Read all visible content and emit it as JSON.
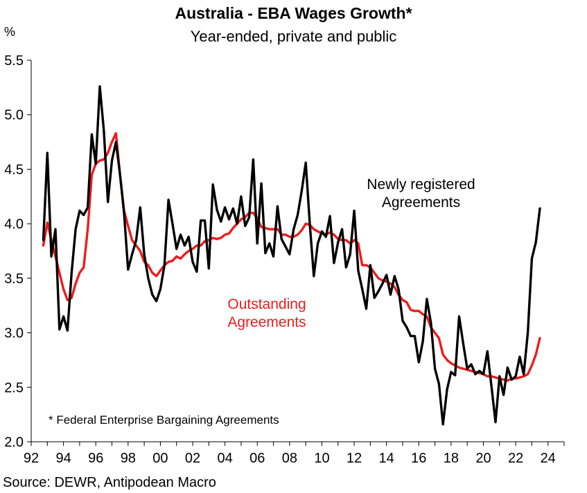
{
  "title": "Australia - EBA Wages Growth*",
  "subtitle": "Year-ended, private and public",
  "unit_label": "%",
  "source": "Source: DEWR, Antipodean Macro",
  "footnote": "*  Federal Enterprise Bargaining Agreements",
  "colors": {
    "newly": "#000000",
    "outstanding": "#ee1c1c",
    "axis": "#000000"
  },
  "chart_data": {
    "type": "line",
    "title": "Australia - EBA Wages Growth*",
    "subtitle": "Year-ended, private and public",
    "ylabel": "%",
    "xlabel": "",
    "ylim": [
      2.0,
      5.5
    ],
    "xlim": [
      1992,
      2025
    ],
    "yticks": [
      2.0,
      2.5,
      3.0,
      3.5,
      4.0,
      4.5,
      5.0,
      5.5
    ],
    "ytick_labels": [
      "2.0",
      "2.5",
      "3.0",
      "3.5",
      "4.0",
      "4.5",
      "5.0",
      "5.5"
    ],
    "xticks": [
      1992,
      1994,
      1996,
      1998,
      2000,
      2002,
      2004,
      2006,
      2008,
      2010,
      2012,
      2014,
      2016,
      2018,
      2020,
      2022,
      2024
    ],
    "xtick_labels": [
      "92",
      "94",
      "96",
      "98",
      "00",
      "02",
      "04",
      "06",
      "08",
      "10",
      "12",
      "14",
      "16",
      "18",
      "20",
      "22",
      "24"
    ],
    "grid": false,
    "series": [
      {
        "name": "Newly registered Agreements",
        "label_lines": [
          "Newly registered",
          "Agreements"
        ],
        "color": "#000000",
        "x": [
          1992.75,
          1993.0,
          1993.25,
          1993.5,
          1993.75,
          1994.0,
          1994.25,
          1994.5,
          1994.75,
          1995.0,
          1995.25,
          1995.5,
          1995.75,
          1996.0,
          1996.25,
          1996.5,
          1996.75,
          1997.0,
          1997.25,
          1997.5,
          1997.75,
          1998.0,
          1998.25,
          1998.5,
          1998.75,
          1999.0,
          1999.25,
          1999.5,
          1999.75,
          2000.0,
          2000.25,
          2000.5,
          2000.75,
          2001.0,
          2001.25,
          2001.5,
          2001.75,
          2002.0,
          2002.25,
          2002.5,
          2002.75,
          2003.0,
          2003.25,
          2003.5,
          2003.75,
          2004.0,
          2004.25,
          2004.5,
          2004.75,
          2005.0,
          2005.25,
          2005.5,
          2005.75,
          2006.0,
          2006.25,
          2006.5,
          2006.75,
          2007.0,
          2007.25,
          2007.5,
          2007.75,
          2008.0,
          2008.25,
          2008.5,
          2008.75,
          2009.0,
          2009.25,
          2009.5,
          2009.75,
          2010.0,
          2010.25,
          2010.5,
          2010.75,
          2011.0,
          2011.25,
          2011.5,
          2011.75,
          2012.0,
          2012.25,
          2012.5,
          2012.75,
          2013.0,
          2013.25,
          2013.5,
          2013.75,
          2014.0,
          2014.25,
          2014.5,
          2014.75,
          2015.0,
          2015.25,
          2015.5,
          2015.75,
          2016.0,
          2016.25,
          2016.5,
          2016.75,
          2017.0,
          2017.25,
          2017.5,
          2017.75,
          2018.0,
          2018.25,
          2018.5,
          2018.75,
          2019.0,
          2019.25,
          2019.5,
          2019.75,
          2020.0,
          2020.25,
          2020.5,
          2020.75,
          2021.0,
          2021.25,
          2021.5,
          2021.75,
          2022.0,
          2022.25,
          2022.5,
          2022.75,
          2023.0,
          2023.25,
          2023.5
        ],
        "values": [
          3.85,
          4.65,
          3.7,
          3.95,
          3.03,
          3.15,
          3.02,
          3.55,
          3.95,
          4.12,
          4.08,
          4.15,
          4.82,
          4.55,
          5.26,
          4.85,
          4.2,
          4.58,
          4.75,
          4.45,
          4.1,
          3.58,
          3.72,
          3.85,
          4.15,
          3.72,
          3.5,
          3.35,
          3.29,
          3.4,
          3.62,
          4.22,
          4.0,
          3.77,
          3.9,
          3.8,
          3.88,
          3.65,
          3.56,
          4.03,
          4.03,
          3.59,
          4.36,
          4.13,
          4.02,
          4.15,
          4.04,
          4.14,
          4.0,
          4.25,
          3.98,
          4.06,
          4.59,
          3.82,
          4.37,
          3.73,
          3.82,
          3.7,
          4.16,
          3.86,
          3.79,
          3.72,
          3.95,
          4.08,
          4.3,
          4.56,
          4.0,
          3.52,
          3.82,
          3.93,
          3.88,
          4.07,
          3.64,
          3.83,
          3.95,
          3.6,
          3.72,
          4.12,
          3.57,
          3.4,
          3.22,
          3.62,
          3.32,
          3.38,
          3.45,
          3.53,
          3.35,
          3.52,
          3.4,
          3.11,
          3.05,
          2.97,
          2.97,
          2.73,
          2.92,
          3.31,
          3.09,
          2.67,
          2.53,
          2.16,
          2.48,
          2.64,
          2.61,
          3.15,
          2.9,
          2.67,
          2.71,
          2.62,
          2.65,
          2.62,
          2.83,
          2.51,
          2.18,
          2.6,
          2.43,
          2.68,
          2.57,
          2.6,
          2.78,
          2.62,
          3.0,
          3.68,
          3.83,
          4.14
        ]
      },
      {
        "name": "Outstanding Agreements",
        "label_lines": [
          "Outstanding",
          "Agreements"
        ],
        "color": "#ee1c1c",
        "x": [
          1992.75,
          1993.0,
          1993.25,
          1993.5,
          1993.75,
          1994.0,
          1994.25,
          1994.5,
          1994.75,
          1995.0,
          1995.25,
          1995.5,
          1995.75,
          1996.0,
          1996.25,
          1996.5,
          1996.75,
          1997.0,
          1997.25,
          1997.5,
          1997.75,
          1998.0,
          1998.25,
          1998.5,
          1998.75,
          1999.0,
          1999.25,
          1999.5,
          1999.75,
          2000.0,
          2000.25,
          2000.5,
          2000.75,
          2001.0,
          2001.25,
          2001.5,
          2001.75,
          2002.0,
          2002.25,
          2002.5,
          2002.75,
          2003.0,
          2003.25,
          2003.5,
          2003.75,
          2004.0,
          2004.25,
          2004.5,
          2004.75,
          2005.0,
          2005.25,
          2005.5,
          2005.75,
          2006.0,
          2006.25,
          2006.5,
          2006.75,
          2007.0,
          2007.25,
          2007.5,
          2007.75,
          2008.0,
          2008.25,
          2008.5,
          2008.75,
          2009.0,
          2009.25,
          2009.5,
          2009.75,
          2010.0,
          2010.25,
          2010.5,
          2010.75,
          2011.0,
          2011.25,
          2011.5,
          2011.75,
          2012.0,
          2012.25,
          2012.5,
          2012.75,
          2013.0,
          2013.25,
          2013.5,
          2013.75,
          2014.0,
          2014.25,
          2014.5,
          2014.75,
          2015.0,
          2015.25,
          2015.5,
          2015.75,
          2016.0,
          2016.25,
          2016.5,
          2016.75,
          2017.0,
          2017.25,
          2017.5,
          2017.75,
          2018.0,
          2018.25,
          2018.5,
          2018.75,
          2019.0,
          2019.25,
          2019.5,
          2019.75,
          2020.0,
          2020.25,
          2020.5,
          2020.75,
          2021.0,
          2021.25,
          2021.5,
          2021.75,
          2022.0,
          2022.25,
          2022.5,
          2022.75,
          2023.0,
          2023.25,
          2023.5
        ],
        "values": [
          3.8,
          4.01,
          3.85,
          3.7,
          3.55,
          3.4,
          3.3,
          3.32,
          3.45,
          3.55,
          3.6,
          3.95,
          4.45,
          4.55,
          4.58,
          4.59,
          4.65,
          4.75,
          4.83,
          4.45,
          4.12,
          3.98,
          3.85,
          3.8,
          3.75,
          3.65,
          3.62,
          3.55,
          3.52,
          3.57,
          3.62,
          3.65,
          3.66,
          3.7,
          3.68,
          3.72,
          3.75,
          3.77,
          3.8,
          3.8,
          3.84,
          3.85,
          3.87,
          3.86,
          3.87,
          3.9,
          3.91,
          3.96,
          4.0,
          4.04,
          4.06,
          4.1,
          4.1,
          4.05,
          3.97,
          3.96,
          3.95,
          3.95,
          3.95,
          3.9,
          3.9,
          3.88,
          3.88,
          3.9,
          3.94,
          4.0,
          3.99,
          3.95,
          3.93,
          3.91,
          3.9,
          3.92,
          3.9,
          3.86,
          3.85,
          3.85,
          3.82,
          3.85,
          3.82,
          3.62,
          3.62,
          3.6,
          3.55,
          3.5,
          3.48,
          3.47,
          3.45,
          3.42,
          3.35,
          3.3,
          3.28,
          3.21,
          3.2,
          3.2,
          3.17,
          3.15,
          3.05,
          3.0,
          2.95,
          2.8,
          2.75,
          2.72,
          2.7,
          2.68,
          2.67,
          2.66,
          2.65,
          2.64,
          2.63,
          2.62,
          2.6,
          2.6,
          2.59,
          2.58,
          2.57,
          2.56,
          2.58,
          2.58,
          2.59,
          2.6,
          2.62,
          2.7,
          2.8,
          2.95
        ]
      }
    ],
    "annotations": [
      "Newly registered",
      "Agreements",
      "Outstanding",
      "Agreements"
    ]
  }
}
